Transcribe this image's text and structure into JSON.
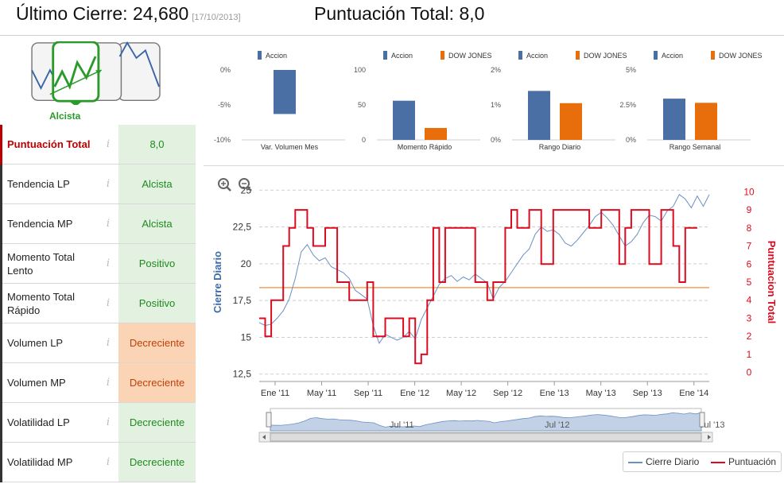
{
  "header": {
    "last_close_label": "Último Cierre:",
    "last_close_value": "24,680",
    "last_close_date": "[17/10/2013]",
    "score_label": "Puntuación Total:",
    "score_value": "8,0"
  },
  "trend_icon": {
    "label": "Alcista",
    "icon": "bullish-trend-icon"
  },
  "indicators": [
    {
      "name": "Puntuación Total",
      "value": "8,0",
      "status": "green",
      "highlight": true
    },
    {
      "name": "Tendencia LP",
      "value": "Alcista",
      "status": "green"
    },
    {
      "name": "Tendencia MP",
      "value": "Alcista",
      "status": "green"
    },
    {
      "name": "Momento Total Lento",
      "value": "Positivo",
      "status": "green"
    },
    {
      "name": "Momento Total Rápido",
      "value": "Positivo",
      "status": "green"
    },
    {
      "name": "Volumen LP",
      "value": "Decreciente",
      "status": "orange"
    },
    {
      "name": "Volumen MP",
      "value": "Decreciente",
      "status": "orange"
    },
    {
      "name": "Volatilidad LP",
      "value": "Decreciente",
      "status": "green"
    },
    {
      "name": "Volatilidad MP",
      "value": "Decreciente",
      "status": "green"
    }
  ],
  "info_glyph": "i",
  "colors": {
    "accion": "#4a6fa5",
    "dow": "#e86e0c",
    "cierre": "#6b8fc2",
    "puntuacion": "#dd0b1f",
    "threshold": "#f5a05a",
    "green": "#2b9a2b"
  },
  "chart_data": [
    {
      "type": "bar",
      "xlabel": "Var. Volumen Mes",
      "series": [
        {
          "name": "Accion",
          "values": [
            -6.3
          ]
        }
      ],
      "ylim": [
        -10,
        0
      ],
      "yticks": [
        "0%",
        "-5%",
        "-10%"
      ]
    },
    {
      "type": "bar",
      "xlabel": "Momento Rápido",
      "series": [
        {
          "name": "Accion",
          "values": [
            56
          ]
        },
        {
          "name": "DOW JONES",
          "values": [
            17
          ]
        }
      ],
      "ylim": [
        0,
        100
      ],
      "yticks": [
        "100",
        "50",
        "0"
      ]
    },
    {
      "type": "bar",
      "xlabel": "Rango Diario",
      "series": [
        {
          "name": "Accion",
          "values": [
            1.4
          ]
        },
        {
          "name": "DOW JONES",
          "values": [
            1.05
          ]
        }
      ],
      "ylim": [
        0,
        2
      ],
      "yticks": [
        "2%",
        "1%",
        "0%"
      ]
    },
    {
      "type": "bar",
      "xlabel": "Rango Semanal",
      "series": [
        {
          "name": "Accion",
          "values": [
            2.95
          ]
        },
        {
          "name": "DOW JONES",
          "values": [
            2.65
          ]
        }
      ],
      "ylim": [
        0,
        5
      ],
      "yticks": [
        "5%",
        "2.5%",
        "0%"
      ]
    },
    {
      "type": "line",
      "ylabel": "Cierre Diario",
      "y2label": "Puntuacion Total",
      "ylim": [
        12,
        25.5
      ],
      "y2lim": [
        -0.5,
        10.5
      ],
      "yticks": [
        "25",
        "22,5",
        "20",
        "17,5",
        "15",
        "12,5"
      ],
      "y2ticks": [
        "10",
        "9",
        "8",
        "7",
        "6",
        "5",
        "4",
        "3",
        "2",
        "1",
        "0"
      ],
      "xticks": [
        "Ene '11",
        "May '11",
        "Sep '11",
        "Ene '12",
        "May '12",
        "Sep '12",
        "Ene '13",
        "May '13",
        "Sep '13",
        "Ene '14"
      ],
      "navigator_labels": [
        "Jul '11",
        "Jul '12",
        "Jul '13"
      ],
      "threshold": 4.7,
      "series": [
        {
          "name": "Cierre Diario",
          "points": [
            [
              0,
              16.0
            ],
            [
              2,
              15.8
            ],
            [
              4,
              15.9
            ],
            [
              6,
              16.3
            ],
            [
              8,
              16.8
            ],
            [
              10,
              17.6
            ],
            [
              12,
              19.0
            ],
            [
              14,
              20.8
            ],
            [
              16,
              21.3
            ],
            [
              18,
              20.6
            ],
            [
              20,
              20.2
            ],
            [
              22,
              20.4
            ],
            [
              24,
              19.8
            ],
            [
              26,
              19.6
            ],
            [
              28,
              19.4
            ],
            [
              30,
              19.0
            ],
            [
              32,
              18.2
            ],
            [
              34,
              17.9
            ],
            [
              36,
              17.6
            ],
            [
              38,
              15.8
            ],
            [
              40,
              14.6
            ],
            [
              42,
              15.2
            ],
            [
              44,
              15.0
            ],
            [
              46,
              14.8
            ],
            [
              48,
              15.0
            ],
            [
              50,
              15.4
            ],
            [
              52,
              14.9
            ],
            [
              54,
              16.2
            ],
            [
              56,
              17.0
            ],
            [
              58,
              17.8
            ],
            [
              60,
              18.6
            ],
            [
              62,
              19.0
            ],
            [
              64,
              19.2
            ],
            [
              66,
              18.8
            ],
            [
              68,
              19.1
            ],
            [
              70,
              18.9
            ],
            [
              72,
              19.3
            ],
            [
              74,
              19.0
            ],
            [
              76,
              18.7
            ],
            [
              78,
              17.6
            ],
            [
              80,
              18.4
            ],
            [
              82,
              18.8
            ],
            [
              84,
              19.4
            ],
            [
              86,
              20.0
            ],
            [
              88,
              20.6
            ],
            [
              90,
              21.0
            ],
            [
              92,
              22.0
            ],
            [
              94,
              22.5
            ],
            [
              96,
              22.2
            ],
            [
              98,
              22.3
            ],
            [
              100,
              22.0
            ],
            [
              102,
              21.4
            ],
            [
              104,
              21.2
            ],
            [
              106,
              21.6
            ],
            [
              108,
              22.1
            ],
            [
              110,
              22.6
            ],
            [
              112,
              23.2
            ],
            [
              114,
              23.5
            ],
            [
              116,
              23.1
            ],
            [
              118,
              22.6
            ],
            [
              120,
              21.9
            ],
            [
              122,
              21.2
            ],
            [
              124,
              21.5
            ],
            [
              126,
              22.0
            ],
            [
              128,
              22.8
            ],
            [
              130,
              23.3
            ],
            [
              132,
              23.2
            ],
            [
              134,
              22.9
            ],
            [
              136,
              23.6
            ],
            [
              138,
              23.9
            ],
            [
              140,
              24.7
            ],
            [
              142,
              24.4
            ],
            [
              144,
              23.8
            ],
            [
              146,
              24.6
            ],
            [
              148,
              23.9
            ],
            [
              150,
              24.7
            ]
          ]
        },
        {
          "name": "Puntuación",
          "points": [
            [
              0,
              3
            ],
            [
              2,
              3
            ],
            [
              2,
              2
            ],
            [
              4,
              2
            ],
            [
              4,
              4
            ],
            [
              8,
              4
            ],
            [
              8,
              7
            ],
            [
              10,
              7
            ],
            [
              10,
              8
            ],
            [
              12,
              8
            ],
            [
              12,
              9
            ],
            [
              16,
              9
            ],
            [
              16,
              8
            ],
            [
              18,
              8
            ],
            [
              18,
              7
            ],
            [
              22,
              7
            ],
            [
              22,
              8
            ],
            [
              26,
              8
            ],
            [
              26,
              5
            ],
            [
              30,
              5
            ],
            [
              30,
              4
            ],
            [
              36,
              4
            ],
            [
              36,
              5
            ],
            [
              38,
              5
            ],
            [
              38,
              2
            ],
            [
              42,
              2
            ],
            [
              42,
              3
            ],
            [
              48,
              3
            ],
            [
              48,
              2
            ],
            [
              50,
              2
            ],
            [
              50,
              3
            ],
            [
              52,
              3
            ],
            [
              52,
              0.5
            ],
            [
              54,
              0.5
            ],
            [
              54,
              1
            ],
            [
              56,
              1
            ],
            [
              56,
              4
            ],
            [
              58,
              4
            ],
            [
              58,
              8
            ],
            [
              60,
              8
            ],
            [
              60,
              5
            ],
            [
              62,
              5
            ],
            [
              62,
              8
            ],
            [
              72,
              8
            ],
            [
              72,
              5
            ],
            [
              76,
              5
            ],
            [
              76,
              4
            ],
            [
              78,
              4
            ],
            [
              78,
              5
            ],
            [
              82,
              5
            ],
            [
              82,
              8
            ],
            [
              84,
              8
            ],
            [
              84,
              9
            ],
            [
              86,
              9
            ],
            [
              86,
              8
            ],
            [
              90,
              8
            ],
            [
              90,
              9
            ],
            [
              94,
              9
            ],
            [
              94,
              6
            ],
            [
              98,
              6
            ],
            [
              98,
              9
            ],
            [
              110,
              9
            ],
            [
              110,
              8
            ],
            [
              114,
              8
            ],
            [
              114,
              9
            ],
            [
              120,
              9
            ],
            [
              120,
              6
            ],
            [
              122,
              6
            ],
            [
              122,
              8
            ],
            [
              124,
              8
            ],
            [
              124,
              9
            ],
            [
              130,
              9
            ],
            [
              130,
              6
            ],
            [
              134,
              6
            ],
            [
              134,
              9
            ],
            [
              138,
              9
            ],
            [
              138,
              7
            ],
            [
              140,
              7
            ],
            [
              140,
              5
            ],
            [
              142,
              5
            ],
            [
              142,
              8
            ],
            [
              146,
              8
            ]
          ]
        }
      ]
    }
  ],
  "legend": {
    "items": [
      "Cierre Diario",
      "Puntuación"
    ]
  },
  "zoom": {
    "in_icon": "zoom-in-icon",
    "out_icon": "zoom-out-icon"
  }
}
